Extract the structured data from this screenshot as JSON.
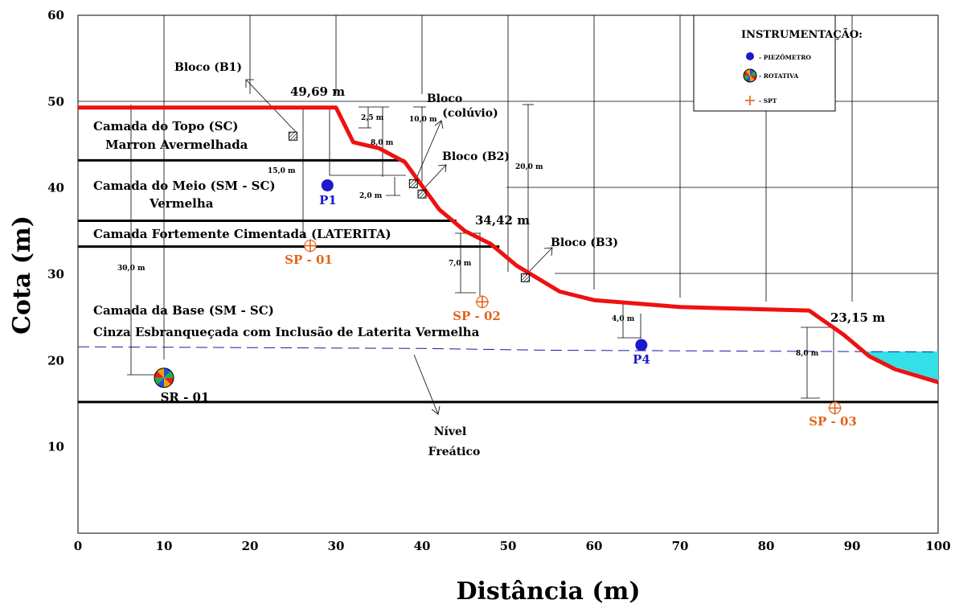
{
  "chart_data": {
    "type": "cross-section",
    "xlabel": "Distância (m)",
    "ylabel": "Cota (m)",
    "xlim": [
      0,
      100
    ],
    "ylim": [
      0,
      60
    ],
    "x_ticks": [
      "0",
      "10",
      "20",
      "30",
      "40",
      "50",
      "60",
      "70",
      "80",
      "90",
      "100"
    ],
    "y_ticks": [
      "10",
      "20",
      "30",
      "40",
      "50",
      "60"
    ],
    "grid": "partial",
    "legend": {
      "position": "top-right",
      "title": "INSTRUMENTAÇÃO:",
      "items": [
        {
          "symbol": "blue-circle",
          "label": "- PIEZÔMETRO"
        },
        {
          "symbol": "multicolor-circle",
          "label": "- ROTATIVA"
        },
        {
          "symbol": "orange-plus",
          "label": "- SPT"
        }
      ]
    },
    "terrain": {
      "color": "#ee1111",
      "points": [
        [
          0,
          49.3
        ],
        [
          30,
          49.3
        ],
        [
          32,
          45.3
        ],
        [
          35,
          44.6
        ],
        [
          38,
          43
        ],
        [
          42,
          37.5
        ],
        [
          45,
          35
        ],
        [
          48,
          33.5
        ],
        [
          51,
          31
        ],
        [
          56,
          28
        ],
        [
          60,
          27
        ],
        [
          70,
          26.2
        ],
        [
          85,
          25.8
        ],
        [
          89,
          23
        ],
        [
          92,
          20.5
        ],
        [
          95,
          19
        ],
        [
          100,
          17.5
        ]
      ]
    },
    "layer_boundaries": [
      {
        "y": 43.2,
        "x_end": 38
      },
      {
        "y": 36.2,
        "x_end": 44
      },
      {
        "y": 33.2,
        "x_end": 49
      },
      {
        "y": 15.2,
        "x_end": 100
      }
    ],
    "water_table": {
      "color": "#1a1aaa",
      "points": [
        [
          0,
          21.6
        ],
        [
          40,
          21.4
        ],
        [
          55,
          21.2
        ],
        [
          100,
          21.0
        ]
      ],
      "label": "Nível Freático",
      "water_body_color": "#33e0e8"
    },
    "layers": [
      {
        "name": "Camada do Topo (SC)",
        "desc": "Marron Avermelhada"
      },
      {
        "name": "Camada do Meio (SM - SC)",
        "desc": "Vermelha"
      },
      {
        "name": "Camada Fortemente Cimentada (LATERITA)",
        "desc": ""
      },
      {
        "name": "Camada da Base (SM - SC)",
        "desc": "Cinza Esbranqueçada com Inclusão de Laterita Vermelha"
      }
    ],
    "instruments": [
      {
        "type": "piezometer",
        "label": "P1",
        "x": 29,
        "y": 40.3
      },
      {
        "type": "piezometer",
        "label": "P4",
        "x": 65.5,
        "y": 21.8
      },
      {
        "type": "rotary",
        "label": "SR - 01",
        "x": 10,
        "y": 18
      },
      {
        "type": "spt",
        "label": "SP - 01",
        "x": 27,
        "y": 33.3
      },
      {
        "type": "spt",
        "label": "SP - 02",
        "x": 47,
        "y": 26.8
      },
      {
        "type": "spt",
        "label": "SP - 03",
        "x": 88,
        "y": 14.5
      }
    ],
    "blocks": [
      {
        "label": "Bloco (B1)",
        "x": 25,
        "y": 46
      },
      {
        "label": "Bloco (colúvio)",
        "x": 39,
        "y": 40.5
      },
      {
        "label": "Bloco (B2)",
        "x": 40,
        "y": 39.3
      },
      {
        "label": "Bloco (B3)",
        "x": 52,
        "y": 29.6
      }
    ],
    "elevation_labels": [
      "49,69 m",
      "34,42 m",
      "23,15 m"
    ],
    "dimensions": [
      "2,5 m",
      "8,0 m",
      "10,0 m",
      "15,0 m",
      "2,0 m",
      "20,0 m",
      "7,0 m",
      "30,0 m",
      "4,0 m",
      "8,0 m"
    ]
  }
}
